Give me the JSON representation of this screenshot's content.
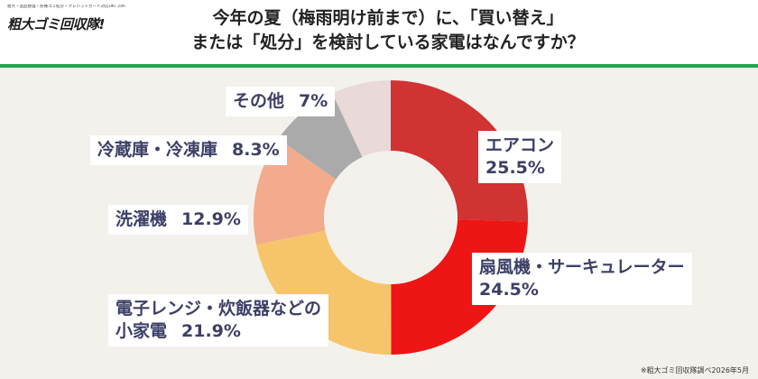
{
  "logo": {
    "tagline": "粗大・遺品整理・各種ゴミ処分・クレジットカード対応OK! 24h",
    "name": "粗大ゴミ回収隊!"
  },
  "title": {
    "line1": "今年の夏（梅雨明け前まで）に、「買い替え」",
    "line2": "または「処分」を検討している家電はなんですか？"
  },
  "footnote": "※粗大ゴミ回収隊調べ2026年5月",
  "colors": {
    "accent_green": "#23a548",
    "label_text": "#3d3f66"
  },
  "chart_data": {
    "type": "pie",
    "donut": true,
    "start": "12 o'clock, clockwise",
    "slices": [
      {
        "name": "エアコン",
        "value": 25.5,
        "value_label": "25.5%",
        "color": "#d13232"
      },
      {
        "name": "扇風機・サーキュレーター",
        "value": 24.5,
        "value_label": "24.5%",
        "color": "#ee1515"
      },
      {
        "name": "電子レンジ・炊飯器などの",
        "name2": "小家電",
        "value": 21.9,
        "value_label": "21.9%",
        "color": "#f6c56b"
      },
      {
        "name": "洗濯機",
        "value": 12.9,
        "value_label": "12.9%",
        "color": "#f2ab8c"
      },
      {
        "name": "冷蔵庫・冷凍庫",
        "value": 8.3,
        "value_label": "8.3%",
        "color": "#aaaaaa"
      },
      {
        "name": "その他",
        "value": 7,
        "value_label": "7%",
        "color": "#e9d9d9"
      }
    ]
  }
}
